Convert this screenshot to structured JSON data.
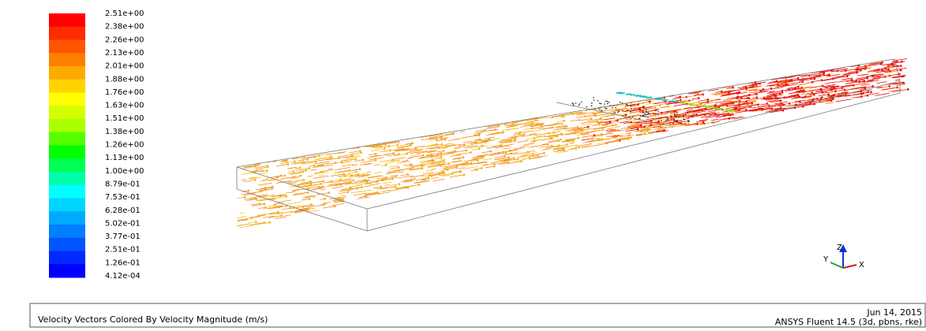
{
  "colorbar": {
    "labels": [
      "2.51e+00",
      "2.38e+00",
      "2.26e+00",
      "2.13e+00",
      "2.01e+00",
      "1.88e+00",
      "1.76e+00",
      "1.63e+00",
      "1.51e+00",
      "1.38e+00",
      "1.26e+00",
      "1.13e+00",
      "1.00e+00",
      "8.79e-01",
      "7.53e-01",
      "6.28e-01",
      "5.02e-01",
      "3.77e-01",
      "2.51e-01",
      "1.26e-01",
      "4.12e-04"
    ],
    "colors": [
      "#ff0000",
      "#ff2a00",
      "#ff5500",
      "#ff7f00",
      "#ffaa00",
      "#ffd400",
      "#ffff00",
      "#d4ff00",
      "#aaff00",
      "#55ff00",
      "#00ff00",
      "#00ff55",
      "#00ffaa",
      "#00ffff",
      "#00d4ff",
      "#00aaff",
      "#007fff",
      "#0055ff",
      "#002aff",
      "#0000ff"
    ]
  },
  "triad": {
    "z": "Z",
    "y": "Y",
    "x": "X"
  },
  "footer": {
    "title": "Velocity Vectors Colored By Velocity Magnitude (m/s)",
    "date": "Jun 14, 2015",
    "software": "ANSYS Fluent 14.5 (3d, pbns, rke)"
  }
}
